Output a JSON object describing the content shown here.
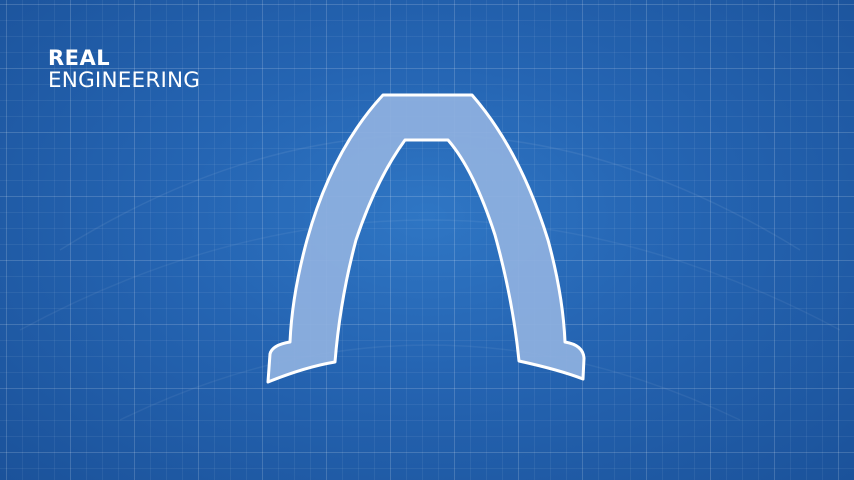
{
  "logo": {
    "line1": "REAL",
    "line2": "ENGINEERING"
  },
  "colors": {
    "background": "#2565b3",
    "shape_fill": "#8fb1e0",
    "shape_stroke": "#ffffff"
  }
}
